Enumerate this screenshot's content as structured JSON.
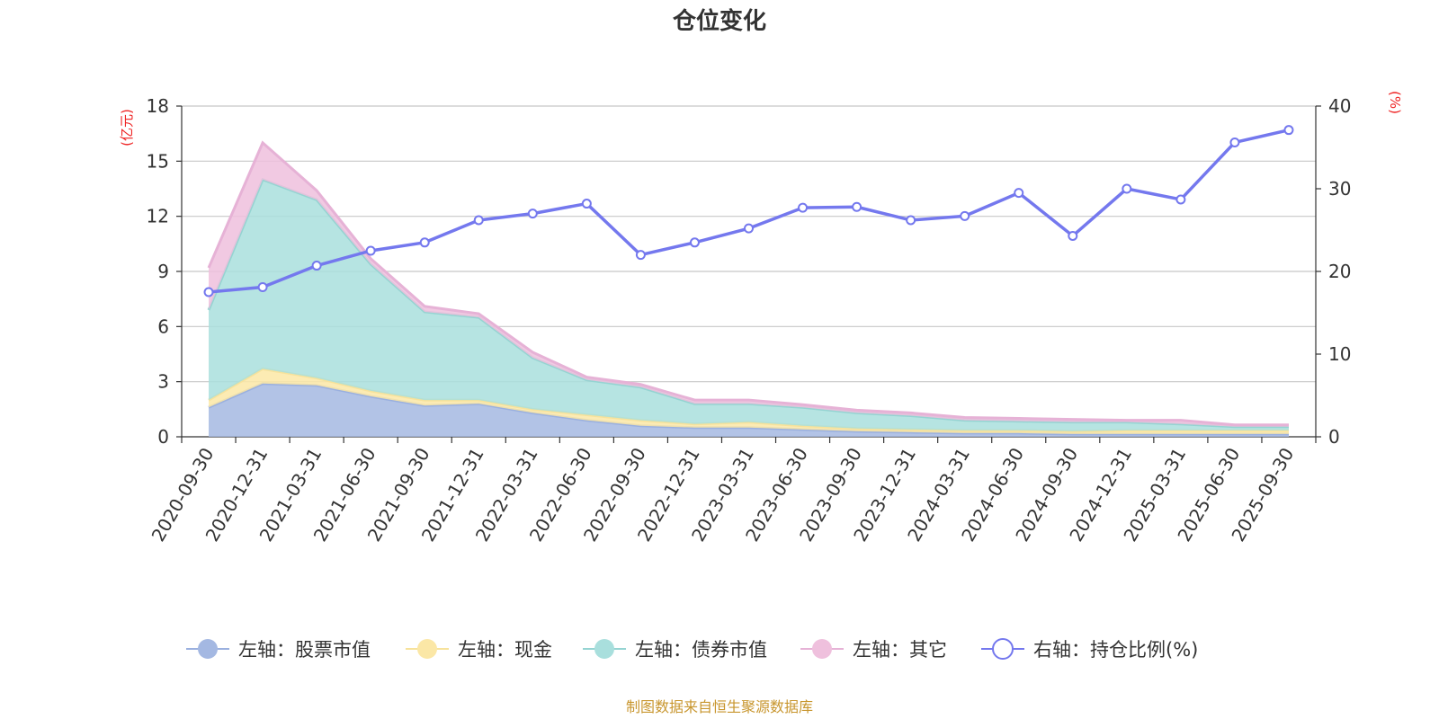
{
  "chart_data": {
    "type": "area",
    "title": "仓位变化",
    "left_axis_unit": "(亿元)",
    "right_axis_unit": "(%)",
    "left_ylim": [
      0,
      18
    ],
    "left_ticks": [
      "0",
      "3",
      "6",
      "9",
      "12",
      "15",
      "18"
    ],
    "right_ylim": [
      0,
      40
    ],
    "right_ticks": [
      "0",
      "10",
      "20",
      "30",
      "40"
    ],
    "categories": [
      "2020-09-30",
      "2020-12-31",
      "2021-03-31",
      "2021-06-30",
      "2021-09-30",
      "2021-12-31",
      "2022-03-31",
      "2022-06-30",
      "2022-09-30",
      "2022-12-31",
      "2023-03-31",
      "2023-06-30",
      "2023-09-30",
      "2023-12-31",
      "2024-03-31",
      "2024-06-30",
      "2024-09-30",
      "2024-12-31",
      "2025-03-31",
      "2025-06-30",
      "2025-09-30"
    ],
    "stacked_series": [
      {
        "name": "左轴：股票市值",
        "color": "#a4b8e2",
        "line_color": "#9ab0df",
        "values": [
          1.6,
          2.9,
          2.8,
          2.2,
          1.7,
          1.8,
          1.3,
          0.9,
          0.6,
          0.5,
          0.5,
          0.4,
          0.3,
          0.25,
          0.2,
          0.2,
          0.15,
          0.15,
          0.15,
          0.15,
          0.15
        ]
      },
      {
        "name": "左轴：现金",
        "color": "#fbe7a6",
        "line_color": "#f7e29b",
        "values": [
          0.4,
          0.8,
          0.4,
          0.3,
          0.3,
          0.2,
          0.2,
          0.3,
          0.3,
          0.2,
          0.3,
          0.2,
          0.15,
          0.15,
          0.15,
          0.15,
          0.15,
          0.2,
          0.2,
          0.2,
          0.2
        ]
      },
      {
        "name": "左轴：债券市值",
        "color": "#a9dfdd",
        "line_color": "#95d4d2",
        "values": [
          4.9,
          10.3,
          9.7,
          6.9,
          4.8,
          4.5,
          2.8,
          1.9,
          1.8,
          1.1,
          1.0,
          1.0,
          0.85,
          0.75,
          0.55,
          0.5,
          0.5,
          0.45,
          0.35,
          0.2,
          0.2
        ]
      },
      {
        "name": "左轴：其它",
        "color": "#efc0dd",
        "line_color": "#e6b2d6",
        "values": [
          2.3,
          2.0,
          0.5,
          0.3,
          0.3,
          0.2,
          0.3,
          0.15,
          0.15,
          0.2,
          0.2,
          0.15,
          0.15,
          0.15,
          0.15,
          0.15,
          0.15,
          0.1,
          0.2,
          0.1,
          0.1
        ]
      }
    ],
    "line_series": {
      "name": "右轴：持仓比例(%)",
      "color": "#7478ee",
      "values": [
        17.5,
        18.1,
        20.7,
        22.5,
        23.5,
        26.2,
        27.0,
        28.2,
        22.0,
        23.5,
        25.2,
        27.7,
        27.8,
        26.2,
        26.7,
        29.5,
        24.3,
        30.0,
        28.7,
        35.6,
        37.1
      ]
    },
    "legend": [
      "左轴：股票市值",
      "左轴：现金",
      "左轴：债券市值",
      "左轴：其它",
      "右轴：持仓比例(%)"
    ],
    "legend_position": "bottom-center",
    "grid": true
  },
  "axis_unit_color": "#ee2222",
  "source_color": "#c8962e",
  "footer": {
    "source": "制图数据来自恒生聚源数据库"
  }
}
